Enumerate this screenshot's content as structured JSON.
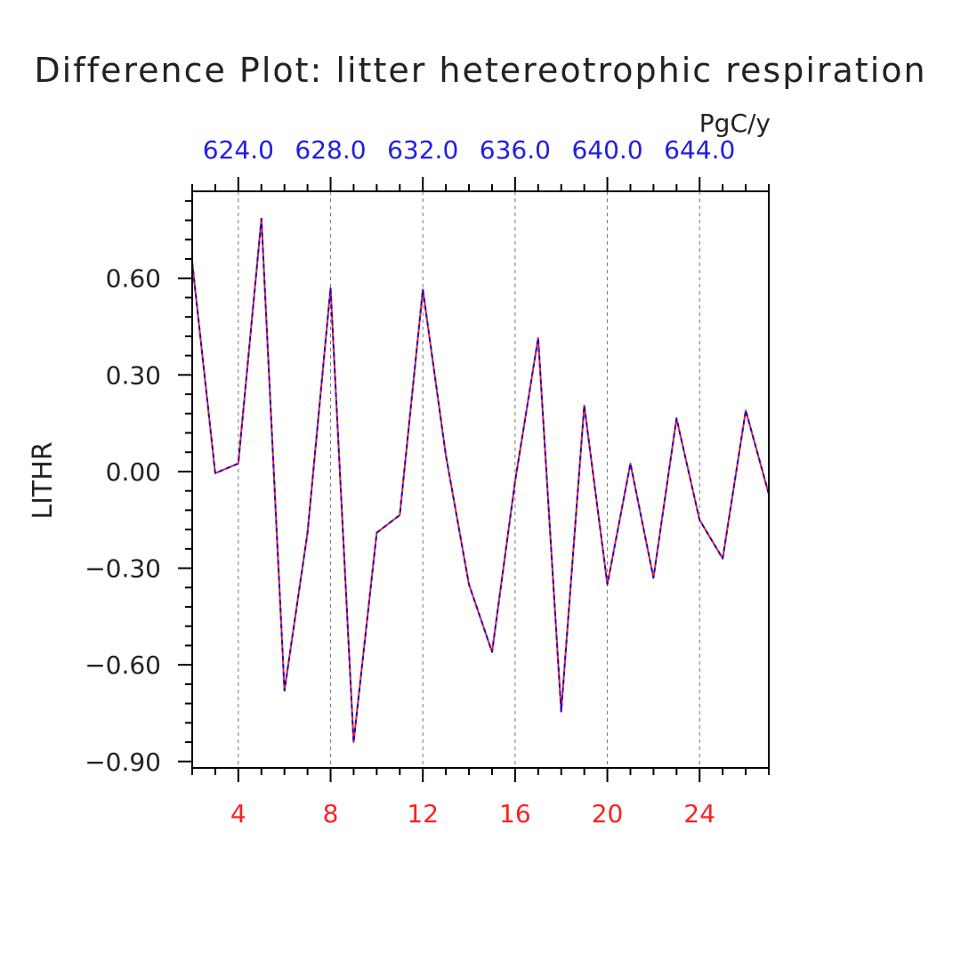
{
  "chart_data": {
    "type": "line",
    "title": "Difference Plot: litter hetereotrophic respiration",
    "units": "PgC/y",
    "ylabel": "LITHR",
    "xlabel": "",
    "xlim": [
      2,
      27
    ],
    "ylim": [
      -0.92,
      0.87
    ],
    "x_ticks": [
      4,
      8,
      12,
      16,
      20,
      24
    ],
    "x_tick_labels": [
      "4",
      "8",
      "12",
      "16",
      "20",
      "24"
    ],
    "top_axis_ticks": [
      4,
      8,
      12,
      16,
      20,
      24
    ],
    "top_axis_labels": [
      "624.0",
      "628.0",
      "632.0",
      "636.0",
      "640.0",
      "644.0"
    ],
    "y_ticks": [
      0.6,
      0.3,
      0.0,
      -0.3,
      -0.6,
      -0.9
    ],
    "y_tick_labels": [
      "0.60",
      "0.30",
      "0.00",
      "−0.30",
      "−0.60",
      "−0.90"
    ],
    "grid": "vertical dashed at major x ticks",
    "x": [
      2,
      3,
      4,
      5,
      6,
      7,
      8,
      9,
      10,
      11,
      12,
      13,
      14,
      15,
      16,
      17,
      18,
      19,
      20,
      21,
      22,
      23,
      24,
      25,
      26,
      27
    ],
    "series": [
      {
        "color": "#ff2020",
        "style": "solid",
        "values": [
          0.65,
          -0.005,
          0.025,
          0.785,
          -0.68,
          -0.19,
          0.57,
          -0.84,
          -0.19,
          -0.135,
          0.565,
          0.05,
          -0.35,
          -0.56,
          -0.03,
          0.415,
          -0.745,
          0.205,
          -0.35,
          0.025,
          -0.33,
          0.165,
          -0.15,
          -0.27,
          0.19,
          -0.07
        ]
      },
      {
        "color": "#1010d0",
        "style": "dashed",
        "values": [
          0.65,
          -0.005,
          0.025,
          0.785,
          -0.68,
          -0.19,
          0.57,
          -0.84,
          -0.19,
          -0.135,
          0.565,
          0.05,
          -0.35,
          -0.56,
          -0.03,
          0.415,
          -0.745,
          0.205,
          -0.35,
          0.025,
          -0.33,
          0.165,
          -0.15,
          -0.27,
          0.19,
          -0.07
        ]
      }
    ]
  }
}
